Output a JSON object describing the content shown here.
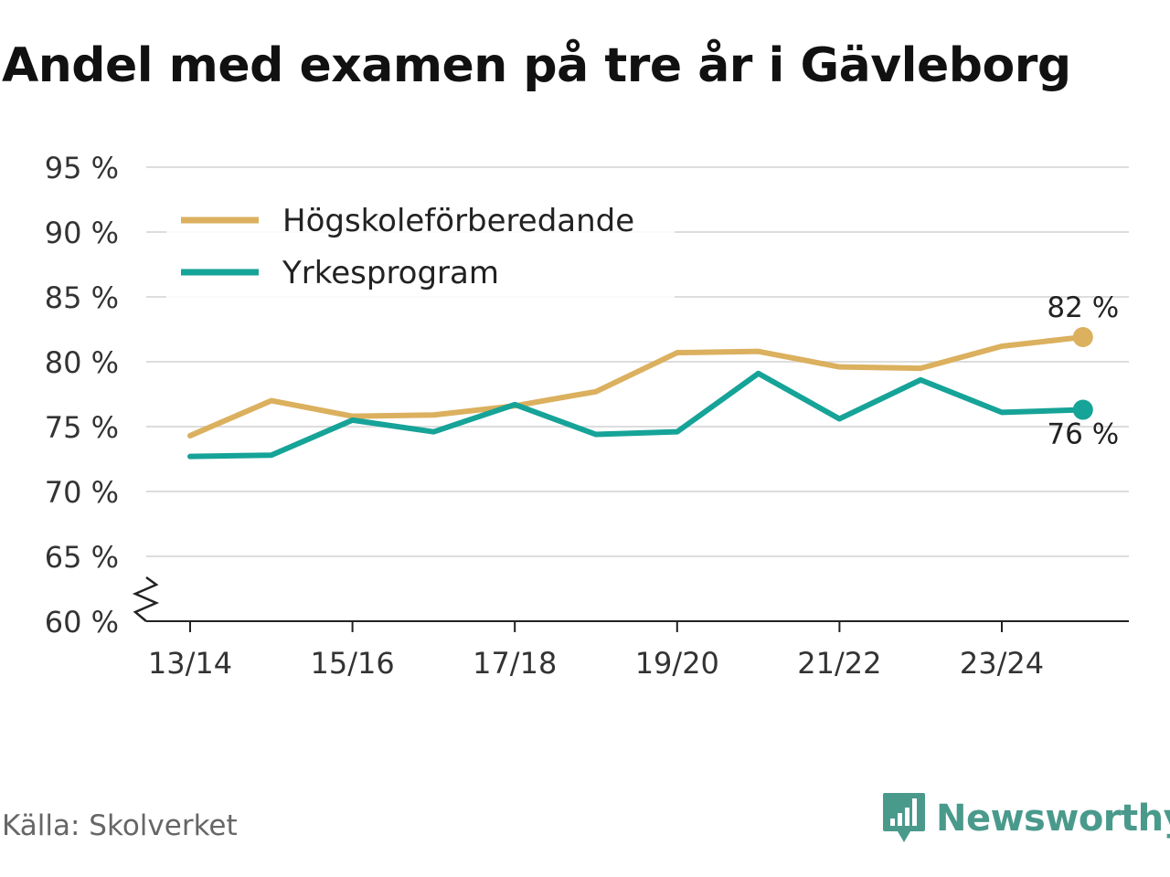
{
  "chart_data": {
    "type": "line",
    "title": "Andel med examen på tre år i Gävleborg",
    "y_tick_labels": [
      "60 %",
      "65 %",
      "70 %",
      "75 %",
      "80 %",
      "85 %",
      "90 %",
      "95 %"
    ],
    "y_ticks": [
      60,
      65,
      70,
      75,
      80,
      85,
      90,
      95
    ],
    "ylim": [
      60,
      95
    ],
    "axis_break": true,
    "x_tick_labels": [
      "13/14",
      "15/16",
      "17/18",
      "19/20",
      "21/22",
      "23/24"
    ],
    "x_tick_positions": [
      0,
      2,
      4,
      6,
      8,
      10
    ],
    "x": [
      "13/14",
      "14/15",
      "15/16",
      "16/17",
      "17/18",
      "18/19",
      "19/20",
      "20/21",
      "21/22",
      "22/23",
      "23/24",
      "24/25"
    ],
    "grid": true,
    "legend_placement": "top-left",
    "series": [
      {
        "name": "Högskoleförberedande",
        "color": "#dbb05e",
        "values": [
          74.3,
          77.0,
          75.8,
          75.9,
          76.6,
          77.7,
          80.7,
          80.8,
          79.6,
          79.5,
          81.2,
          81.9
        ],
        "end_label": "82 %",
        "end_label_position": "above"
      },
      {
        "name": "Yrkesprogram",
        "color": "#16a398",
        "values": [
          72.7,
          72.8,
          75.5,
          74.6,
          76.7,
          74.4,
          74.6,
          79.1,
          75.6,
          78.6,
          76.1,
          76.3
        ],
        "end_label": "76 %",
        "end_label_position": "below"
      }
    ]
  },
  "footer": {
    "source": "Källa: Skolverket",
    "brand": "Newsworthy",
    "brand_color": "#4a9a8c",
    "logo_icon": "chart-speech-bubble-icon"
  }
}
